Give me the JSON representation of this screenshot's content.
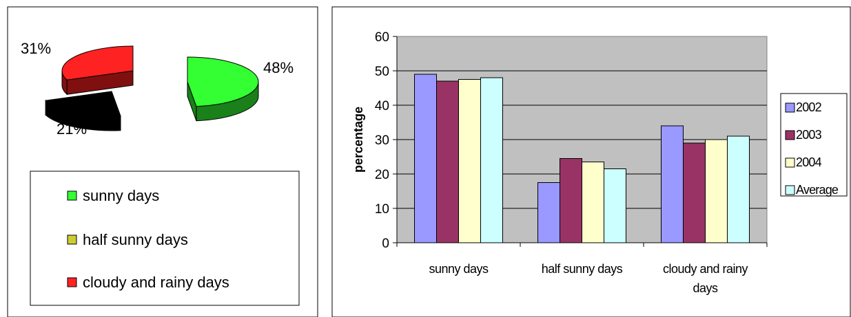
{
  "chart_data": [
    {
      "type": "pie",
      "title": "",
      "slices": [
        {
          "name": "sunny days",
          "value": 48,
          "label": "48%",
          "color": "#33ff33",
          "side": "#1a801a"
        },
        {
          "name": "half sunny days",
          "value": 21,
          "label": "21%",
          "color": "#000000",
          "side": "#000000"
        },
        {
          "name": "cloudy and rainy days",
          "value": 31,
          "label": "31%",
          "color": "#ff2222",
          "side": "#801010"
        }
      ],
      "legend": {
        "placement": "bottom",
        "items": [
          {
            "label": "sunny days",
            "color": "#33ff33"
          },
          {
            "label": "half sunny days",
            "color": "#cccc33"
          },
          {
            "label": "cloudy and rainy days",
            "color": "#ff2222"
          }
        ]
      }
    },
    {
      "type": "bar",
      "title": "",
      "xlabel": "",
      "ylabel": "percentage",
      "ylim": [
        0,
        60
      ],
      "yticks": [
        0,
        10,
        20,
        30,
        40,
        50,
        60
      ],
      "grid": true,
      "categories": [
        [
          "sunny days"
        ],
        [
          "half sunny days"
        ],
        [
          "cloudy and rainy",
          "days"
        ]
      ],
      "series": [
        {
          "name": "2002",
          "values": [
            49,
            17.5,
            34
          ],
          "color": "#9999ff"
        },
        {
          "name": "2003",
          "values": [
            47,
            24.5,
            29
          ],
          "color": "#993366"
        },
        {
          "name": "2004",
          "values": [
            47.5,
            23.5,
            30
          ],
          "color": "#ffffcc"
        },
        {
          "name": "Average",
          "values": [
            48,
            21.5,
            31
          ],
          "color": "#ccffff"
        }
      ],
      "legend": {
        "placement": "right"
      }
    }
  ]
}
